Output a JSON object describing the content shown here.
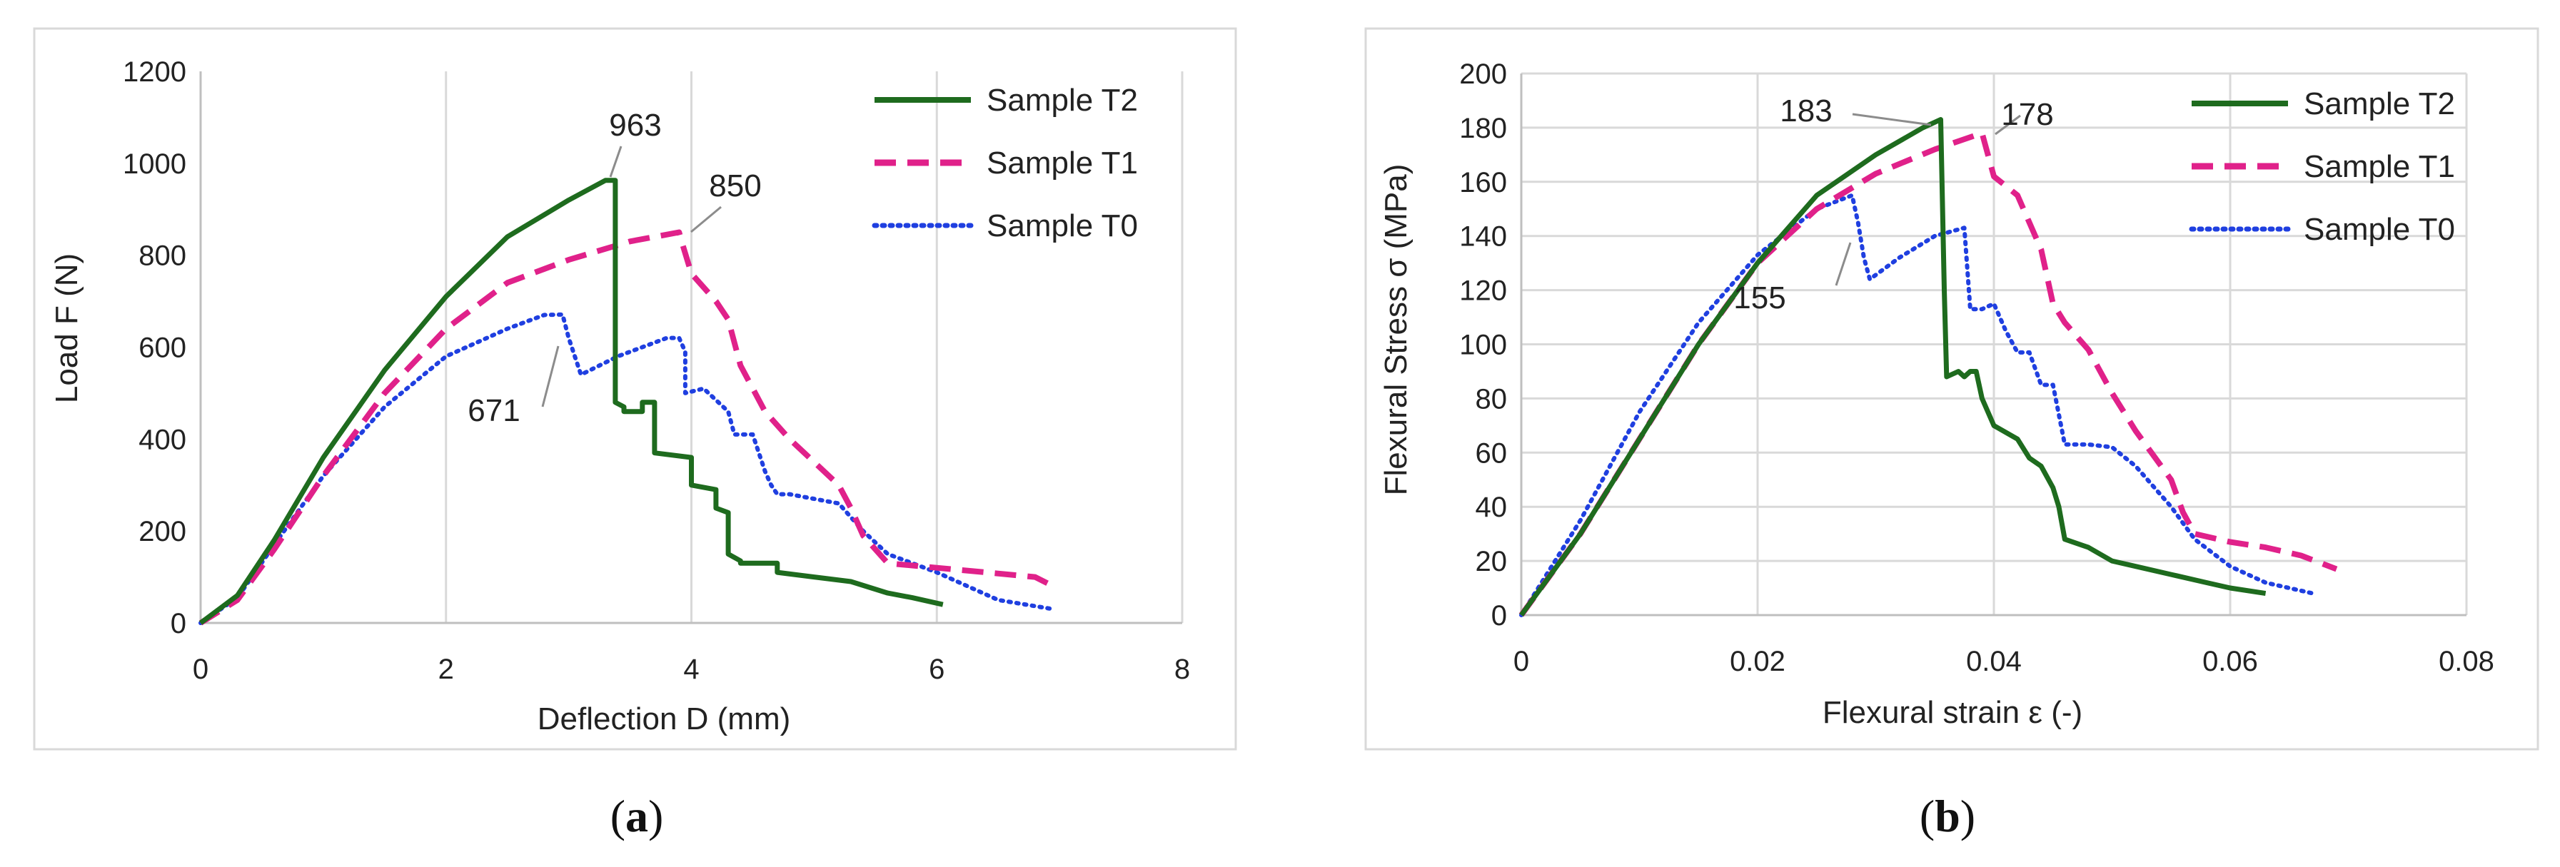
{
  "chart_data": [
    {
      "type": "line",
      "panel": "(a)",
      "caption_open": "(",
      "caption_letter": "a",
      "caption_close": ")",
      "title": "",
      "xlabel": "Deflection D (mm)",
      "ylabel": "Load F (N)",
      "xlim": [
        0,
        8
      ],
      "ylim": [
        0,
        1200
      ],
      "xticks": [
        0,
        2,
        4,
        6,
        8
      ],
      "yticks": [
        0,
        200,
        400,
        600,
        800,
        1000,
        1200
      ],
      "grid": "vertical",
      "legend_position": "top-right",
      "series": [
        {
          "name": "Sample T2",
          "color": "#1e6b1e",
          "style": "solid",
          "x": [
            0,
            0.3,
            0.6,
            1.0,
            1.5,
            2.0,
            2.5,
            3.0,
            3.3,
            3.38,
            3.38,
            3.45,
            3.45,
            3.6,
            3.6,
            3.7,
            3.7,
            4.0,
            4.0,
            4.2,
            4.2,
            4.3,
            4.3,
            4.4,
            4.4,
            4.7,
            4.7,
            5.0,
            5.3,
            5.6,
            5.8,
            6.05
          ],
          "y": [
            0,
            60,
            180,
            360,
            550,
            710,
            840,
            920,
            963,
            963,
            480,
            470,
            460,
            460,
            480,
            480,
            370,
            360,
            300,
            290,
            250,
            240,
            150,
            135,
            130,
            130,
            110,
            100,
            90,
            65,
            55,
            40
          ]
        },
        {
          "name": "Sample T1",
          "color": "#e0218a",
          "style": "dashed",
          "x": [
            0,
            0.3,
            0.6,
            1.0,
            1.5,
            2.0,
            2.5,
            3.0,
            3.5,
            3.9,
            3.92,
            4.0,
            4.2,
            4.3,
            4.4,
            4.6,
            4.8,
            5.0,
            5.2,
            5.3,
            5.4,
            5.6,
            6.0,
            6.4,
            6.8,
            6.95
          ],
          "y": [
            0,
            50,
            160,
            320,
            500,
            640,
            740,
            790,
            830,
            850,
            830,
            760,
            700,
            660,
            560,
            460,
            400,
            350,
            300,
            250,
            190,
            130,
            120,
            110,
            100,
            80
          ]
        },
        {
          "name": "Sample T0",
          "color": "#1f3fe0",
          "style": "dotted",
          "x": [
            0,
            0.3,
            0.6,
            1.0,
            1.5,
            2.0,
            2.5,
            2.8,
            2.95,
            3.0,
            3.05,
            3.1,
            3.4,
            3.8,
            3.9,
            3.95,
            3.95,
            4.1,
            4.3,
            4.35,
            4.5,
            4.55,
            4.6,
            4.65,
            4.7,
            4.8,
            5.0,
            5.2,
            5.4,
            5.6,
            6.0,
            6.5,
            6.95
          ],
          "y": [
            0,
            55,
            170,
            320,
            470,
            580,
            640,
            670,
            671,
            620,
            580,
            540,
            580,
            620,
            620,
            590,
            500,
            510,
            460,
            410,
            410,
            370,
            330,
            300,
            280,
            280,
            270,
            260,
            200,
            150,
            110,
            50,
            30
          ]
        }
      ],
      "annotations": [
        {
          "text": "963",
          "x": 3.3,
          "y": 963
        },
        {
          "text": "850",
          "x": 3.9,
          "y": 850
        },
        {
          "text": "671",
          "x": 2.95,
          "y": 671
        }
      ]
    },
    {
      "type": "line",
      "panel": "(b)",
      "caption_open": "(",
      "caption_letter": "b",
      "caption_close": ")",
      "title": "",
      "xlabel": "Flexural strain ε (-)",
      "ylabel": "Flexural Stress σ (MPa)",
      "xlim": [
        0,
        0.08
      ],
      "ylim": [
        0,
        200
      ],
      "xticks": [
        0,
        0.02,
        0.04,
        0.06,
        0.08
      ],
      "xtick_labels": [
        "0",
        "0.02",
        "0.04",
        "0.06",
        "0.08"
      ],
      "yticks": [
        0,
        20,
        40,
        60,
        80,
        100,
        120,
        140,
        160,
        180,
        200
      ],
      "grid": "both",
      "legend_position": "top-right",
      "series": [
        {
          "name": "Sample T2",
          "color": "#1e6b1e",
          "style": "solid",
          "x": [
            0,
            0.005,
            0.01,
            0.015,
            0.02,
            0.025,
            0.03,
            0.034,
            0.0355,
            0.0358,
            0.036,
            0.037,
            0.0375,
            0.038,
            0.0385,
            0.039,
            0.04,
            0.042,
            0.043,
            0.044,
            0.045,
            0.0455,
            0.046,
            0.048,
            0.05,
            0.052,
            0.055,
            0.058,
            0.06,
            0.063
          ],
          "y": [
            0,
            30,
            65,
            100,
            130,
            155,
            170,
            180,
            183,
            120,
            88,
            90,
            88,
            90,
            90,
            80,
            70,
            65,
            58,
            55,
            47,
            40,
            28,
            25,
            20,
            18,
            15,
            12,
            10,
            8
          ]
        },
        {
          "name": "Sample T1",
          "color": "#e0218a",
          "style": "dashed",
          "x": [
            0,
            0.005,
            0.01,
            0.015,
            0.02,
            0.025,
            0.03,
            0.035,
            0.039,
            0.0395,
            0.04,
            0.042,
            0.044,
            0.045,
            0.046,
            0.048,
            0.05,
            0.052,
            0.055,
            0.056,
            0.057,
            0.06,
            0.063,
            0.066,
            0.069
          ],
          "y": [
            0,
            30,
            65,
            100,
            130,
            150,
            163,
            172,
            178,
            170,
            162,
            155,
            135,
            115,
            108,
            98,
            82,
            68,
            50,
            38,
            30,
            27,
            25,
            22,
            17
          ]
        },
        {
          "name": "Sample T0",
          "color": "#1f3fe0",
          "style": "dotted",
          "x": [
            0,
            0.005,
            0.01,
            0.015,
            0.02,
            0.025,
            0.028,
            0.0285,
            0.029,
            0.0295,
            0.032,
            0.035,
            0.0375,
            0.038,
            0.039,
            0.04,
            0.041,
            0.042,
            0.043,
            0.044,
            0.045,
            0.046,
            0.048,
            0.05,
            0.052,
            0.055,
            0.057,
            0.06,
            0.063,
            0.067
          ],
          "y": [
            0,
            35,
            75,
            108,
            133,
            150,
            155,
            145,
            132,
            124,
            132,
            140,
            143,
            113,
            113,
            115,
            105,
            97,
            97,
            85,
            85,
            63,
            63,
            62,
            55,
            40,
            28,
            18,
            12,
            8
          ]
        }
      ],
      "annotations": [
        {
          "text": "183",
          "x": 0.0355,
          "y": 183
        },
        {
          "text": "178",
          "x": 0.039,
          "y": 178
        },
        {
          "text": "155",
          "x": 0.028,
          "y": 155
        }
      ]
    }
  ]
}
